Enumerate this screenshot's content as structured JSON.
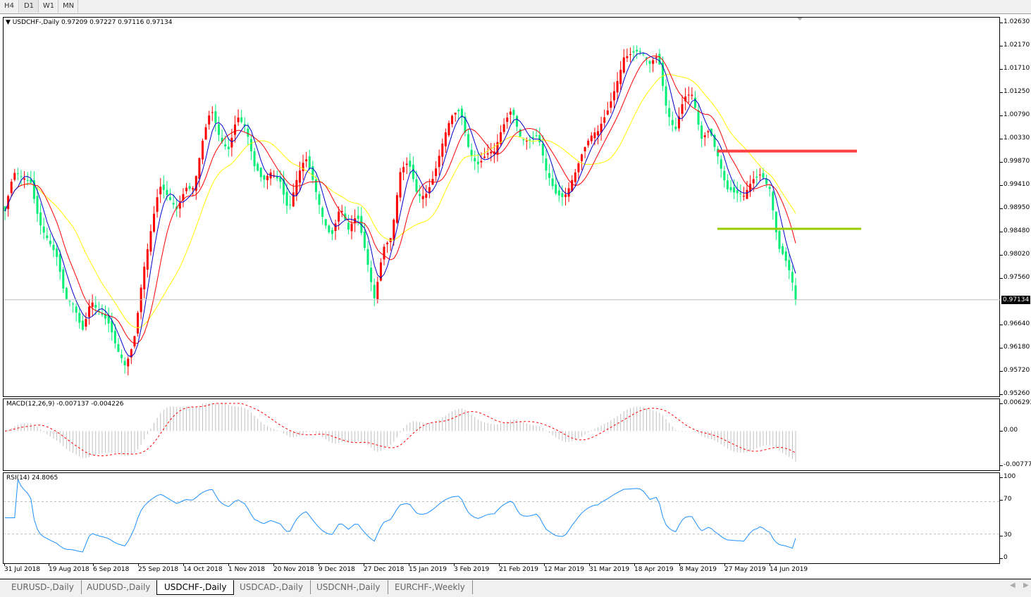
{
  "toolbar": {
    "timeframes": [
      "H4",
      "D1",
      "W1",
      "MN"
    ],
    "active": "D1"
  },
  "chart": {
    "symbol_header": "USDCHF-,Daily",
    "ohlc": "0.97209 0.97227 0.97116 0.97134",
    "current_price": "0.97134",
    "colors": {
      "bull": "#ff0000",
      "bear": "#00ee76",
      "ma_fast": "#0000cc",
      "ma_mid": "#ff0000",
      "ma_slow": "#ffff00",
      "resistance": "#ff4040",
      "support": "#99cc00",
      "rsi": "#1e90ff",
      "macd_hist": "#c0c0c0",
      "macd_signal": "#ff0000"
    }
  },
  "chart_data": [
    {
      "type": "candlestick",
      "title": "USDCHF-,Daily",
      "y_ticks": [
        "1.02630",
        "1.02170",
        "1.01710",
        "1.01250",
        "1.00790",
        "1.00330",
        "0.99870",
        "0.99410",
        "0.98950",
        "0.98480",
        "0.98020",
        "0.97560",
        "0.96640",
        "0.96180",
        "0.95720",
        "0.95260"
      ],
      "ylim": [
        0.9526,
        1.0263
      ],
      "x_ticks": [
        "31 Jul 2018",
        "19 Aug 2018",
        "6 Sep 2018",
        "25 Sep 2018",
        "14 Oct 2018",
        "1 Nov 2018",
        "20 Nov 2018",
        "9 Dec 2018",
        "27 Dec 2018",
        "15 Jan 2019",
        "3 Feb 2019",
        "21 Feb 2019",
        "12 Mar 2019",
        "31 Mar 2019",
        "18 Apr 2019",
        "8 May 2019",
        "27 May 2019",
        "14 Jun 2019"
      ],
      "approx_close_path": [
        0.98889,
        0.99447,
        0.99377,
        0.99517,
        0.98889,
        0.9847,
        0.97912,
        0.96934,
        0.96934,
        0.96655,
        0.97353,
        0.96934,
        0.96516,
        0.95957,
        0.95818,
        0.96516,
        0.97772,
        0.9847,
        0.99168,
        0.99028,
        0.99028,
        0.99587,
        0.99447,
        1.00145,
        1.00704,
        1.00285,
        1.00285,
        1.00983,
        1.00564,
        0.99587,
        0.99308,
        0.99726,
        0.99726,
        0.99028,
        0.99447,
        0.99726,
        0.99308,
        0.98889,
        0.9861,
        0.99028,
        0.9833,
        0.9861,
        0.98051,
        0.97353,
        0.9833,
        0.9833,
        0.99447,
        0.99726,
        0.99308,
        0.99447,
        0.99726,
        1.00145,
        1.00564,
        1.00843,
        1.00285,
        1.00006,
        1.00006,
        0.99866,
        1.00424,
        1.00983,
        1.00564,
        1.00424,
        1.00285,
        0.99447,
        0.99168,
        0.99308,
        0.99726,
        1.00006,
        1.00145,
        1.00285,
        1.00843,
        1.01541,
        1.021,
        1.0196,
        1.0182,
        1.01681,
        1.021,
        1.01122,
        1.00564,
        1.00983,
        1.00983,
        1.00285,
        1.00704,
        1.00145,
        0.99308,
        0.99028,
        0.99028,
        0.99587,
        0.99866,
        0.99447,
        0.98051,
        0.97632,
        0.97134
      ],
      "horizontal_lines": [
        {
          "price": 1.0008,
          "color": "#ff4040"
        },
        {
          "price": 0.9854,
          "color": "#99cc00"
        }
      ],
      "moving_averages": [
        "blue fast",
        "red medium",
        "yellow slow"
      ]
    },
    {
      "type": "histogram+line",
      "title": "MACD(12,26,9) -0.007137 -0.004226",
      "y_ticks": [
        "0.006293",
        "0.00",
        "-0.007777"
      ],
      "ylim": [
        -0.007777,
        0.006293
      ]
    },
    {
      "type": "line",
      "title": "RSI(14) 24.8065",
      "y_ticks": [
        "100",
        "70",
        "30",
        "0"
      ],
      "ylim": [
        0,
        100
      ],
      "levels": [
        70,
        30
      ]
    }
  ],
  "macd": {
    "label": "MACD(12,26,9) -0.007137 -0.004226"
  },
  "rsi": {
    "label": "RSI(14) 24.8065"
  },
  "bottom_tabs": [
    "EURUSD-,Daily",
    "AUDUSD-,Daily",
    "USDCHF-,Daily",
    "USDCAD-,Daily",
    "USDCNH-,Daily",
    "EURCHF-,Weekly"
  ],
  "active_tab": "USDCHF-,Daily"
}
